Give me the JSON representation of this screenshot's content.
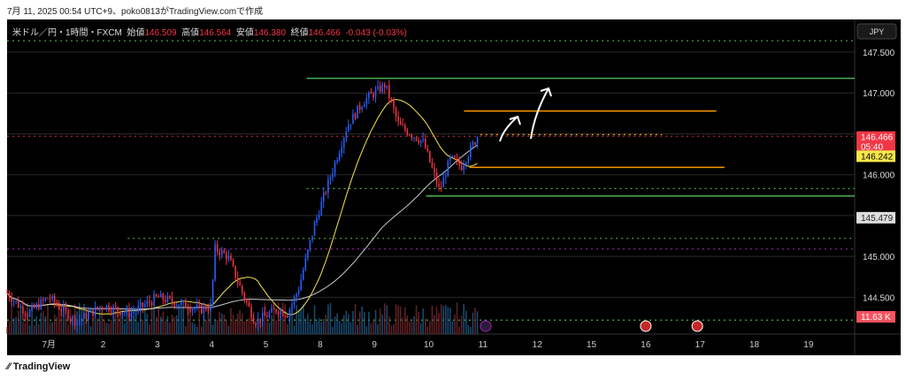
{
  "caption": "7月 11, 2025 00:54 UTC+9、poko0813がTradingView.comで作成",
  "legend": {
    "symbol": "米ドル／円・1時間・FXCM",
    "open_label": "始値",
    "open": "146.509",
    "high_label": "高値",
    "high": "146.564",
    "low_label": "安値",
    "low": "146.380",
    "close_label": "終値",
    "close": "146.466",
    "change": "-0.043 (-0.03%)"
  },
  "currency_button": "JPY",
  "brand": "TradingView",
  "chart_data": {
    "type": "candlestick",
    "symbol": "USD/JPY 1H FXCM",
    "x_ticks": [
      {
        "d": 0,
        "label": "7月"
      },
      {
        "d": 1,
        "label": "2"
      },
      {
        "d": 2,
        "label": "3"
      },
      {
        "d": 3,
        "label": "4"
      },
      {
        "d": 4,
        "label": "5"
      },
      {
        "d": 5,
        "label": "8"
      },
      {
        "d": 6,
        "label": "9"
      },
      {
        "d": 7,
        "label": "10"
      },
      {
        "d": 8,
        "label": "11"
      },
      {
        "d": 9,
        "label": "12"
      },
      {
        "d": 10,
        "label": "15"
      },
      {
        "d": 11,
        "label": "16"
      },
      {
        "d": 12,
        "label": "17"
      },
      {
        "d": 13,
        "label": "18"
      },
      {
        "d": 14,
        "label": "19"
      }
    ],
    "y_ticks": [
      147.5,
      147.0,
      146.5,
      146.0,
      145.5,
      145.0,
      144.5
    ],
    "ylim": [
      144.05,
      147.9
    ],
    "xlim": [
      -0.77,
      14.85
    ],
    "price_path": [
      [
        -0.77,
        144.55
      ],
      [
        -0.4,
        144.3
      ],
      [
        0,
        144.5
      ],
      [
        0.5,
        144.2
      ],
      [
        1,
        144.4
      ],
      [
        1.5,
        144.3
      ],
      [
        2,
        144.5
      ],
      [
        2.8,
        144.35
      ],
      [
        3.0,
        144.4
      ],
      [
        3.05,
        145.1
      ],
      [
        3.3,
        145.0
      ],
      [
        3.6,
        144.5
      ],
      [
        3.8,
        144.2
      ],
      [
        4.2,
        144.35
      ],
      [
        4.4,
        144.3
      ],
      [
        4.6,
        144.6
      ],
      [
        4.9,
        145.4
      ],
      [
        5.2,
        146.0
      ],
      [
        5.5,
        146.6
      ],
      [
        5.8,
        146.9
      ],
      [
        6.2,
        147.1
      ],
      [
        6.45,
        146.6
      ],
      [
        6.9,
        146.4
      ],
      [
        7.2,
        145.8
      ],
      [
        7.4,
        146.2
      ],
      [
        7.6,
        146.1
      ],
      [
        7.9,
        146.47
      ]
    ],
    "last_price": {
      "value": 146.466,
      "label": "146.466",
      "countdown": "05:40",
      "color": "#f23645"
    },
    "ma_fast": {
      "value": 146.242,
      "label": "146.242",
      "color": "#f5e64a"
    },
    "ma_slow": {
      "value": 145.479,
      "label": "145.479",
      "color": "#c8c8d0"
    },
    "volume": {
      "label": "11.63 K",
      "color": "#f7525f"
    },
    "levels": [
      {
        "price": 147.18,
        "style": "solid",
        "color": "#4caf50",
        "from": 4.75
      },
      {
        "price": 145.74,
        "style": "solid",
        "color": "#4caf50",
        "from": 6.95
      },
      {
        "price": 146.78,
        "style": "solid",
        "color": "#ff9800",
        "from": 7.65,
        "to": 12.3
      },
      {
        "price": 146.09,
        "style": "solid",
        "color": "#ff9800",
        "from": 7.75,
        "to": 12.45
      },
      {
        "price": 147.64,
        "style": "dotted",
        "color": "#4caf50"
      },
      {
        "price": 145.83,
        "style": "dotted",
        "color": "#4caf50",
        "from": 4.75
      },
      {
        "price": 145.22,
        "style": "dotted",
        "color": "#4caf50",
        "from": 1.45
      },
      {
        "price": 144.22,
        "style": "dotted",
        "color": "#4caf50"
      },
      {
        "price": 145.09,
        "style": "dotted",
        "color": "#9c27b0"
      },
      {
        "price": 146.47,
        "style": "dotted",
        "color": "#b22833"
      },
      {
        "price": 146.49,
        "style": "dotted",
        "color": "#ff9800",
        "from": 7.95,
        "to": 11.3
      }
    ],
    "events": [
      8.05,
      11.0,
      11.95
    ]
  }
}
